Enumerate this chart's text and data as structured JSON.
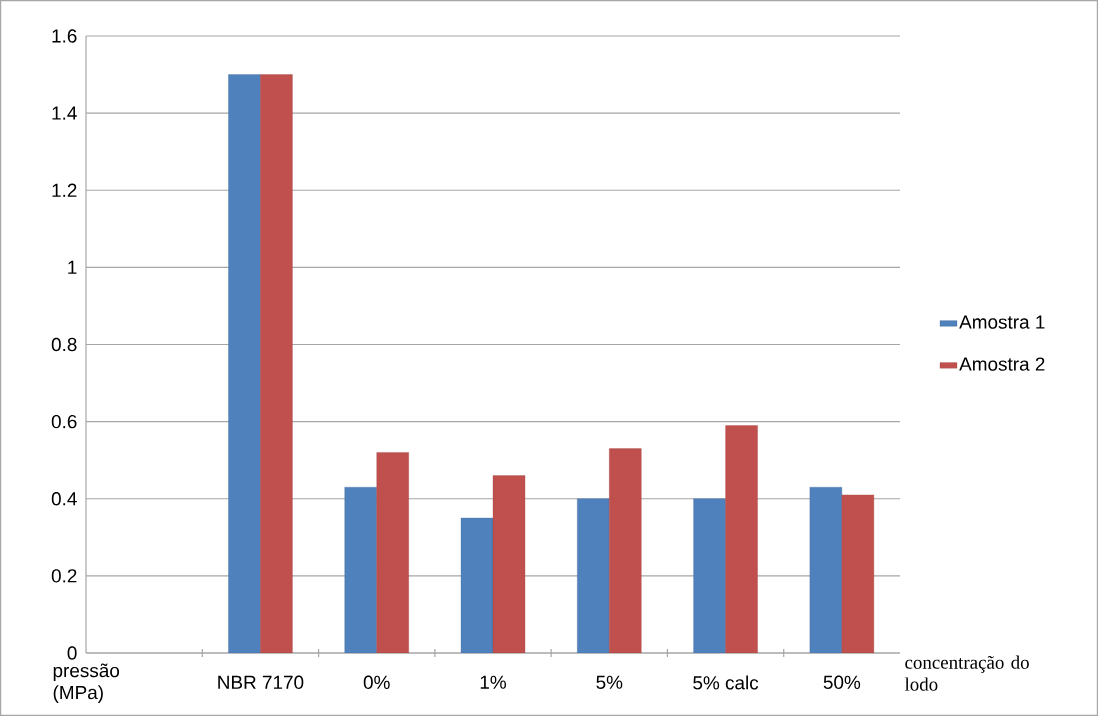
{
  "chart_data": {
    "type": "bar",
    "xlabel": "concentração do lodo",
    "ylabel": "pressão (MPa)",
    "categories": [
      null,
      "NBR 7170",
      "0%",
      "1%",
      "5%",
      "5% calc",
      "50%"
    ],
    "series": [
      {
        "name": "Amostra 1",
        "color": "#4f81bd",
        "values": [
          null,
          1.5,
          0.43,
          0.35,
          0.4,
          0.4,
          0.43
        ]
      },
      {
        "name": "Amostra 2",
        "color": "#c0504d",
        "values": [
          null,
          1.5,
          0.52,
          0.46,
          0.53,
          0.59,
          0.41
        ]
      }
    ],
    "ylim": [
      0,
      1.6
    ],
    "yticks": [
      0,
      0.2,
      0.4,
      0.6,
      0.8,
      1,
      1.2,
      1.4,
      1.6
    ],
    "grid": "y",
    "legend": "right"
  }
}
